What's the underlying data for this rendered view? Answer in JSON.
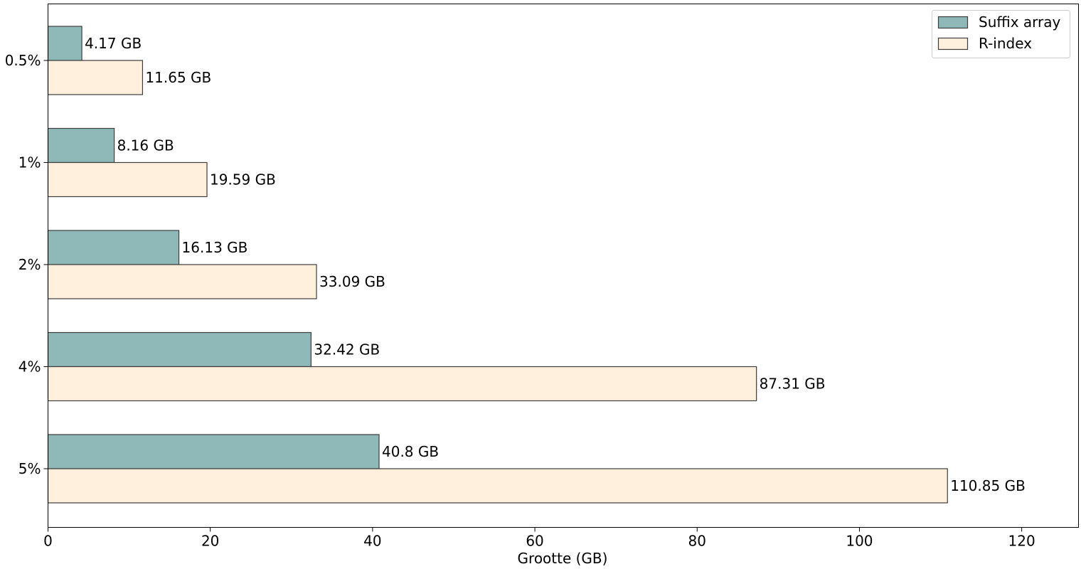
{
  "chart_data": {
    "type": "bar",
    "orientation": "horizontal",
    "categories": [
      "0.5%",
      "1%",
      "2%",
      "4%",
      "5%"
    ],
    "series": [
      {
        "name": "Suffix array",
        "color": "#8fb8b8",
        "values": [
          4.17,
          8.16,
          16.13,
          32.42,
          40.8
        ],
        "labels": [
          "4.17 GB",
          "8.16 GB",
          "16.13 GB",
          "32.42 GB",
          "40.8 GB"
        ]
      },
      {
        "name": "R-index",
        "color": "#ffefdc",
        "values": [
          11.65,
          19.59,
          33.09,
          87.31,
          110.85
        ],
        "labels": [
          "11.65 GB",
          "19.59 GB",
          "33.09 GB",
          "87.31 GB",
          "110.85 GB"
        ]
      }
    ],
    "xlabel": "Grootte (GB)",
    "ylabel": "",
    "title": "",
    "xlim": [
      0,
      127
    ],
    "xticks": [
      0,
      20,
      40,
      60,
      80,
      100,
      120
    ],
    "xtick_labels": [
      "0",
      "20",
      "40",
      "60",
      "80",
      "100",
      "120"
    ],
    "grid": false,
    "legend_position": "top-right",
    "edge_color": "#3d3d3d"
  }
}
